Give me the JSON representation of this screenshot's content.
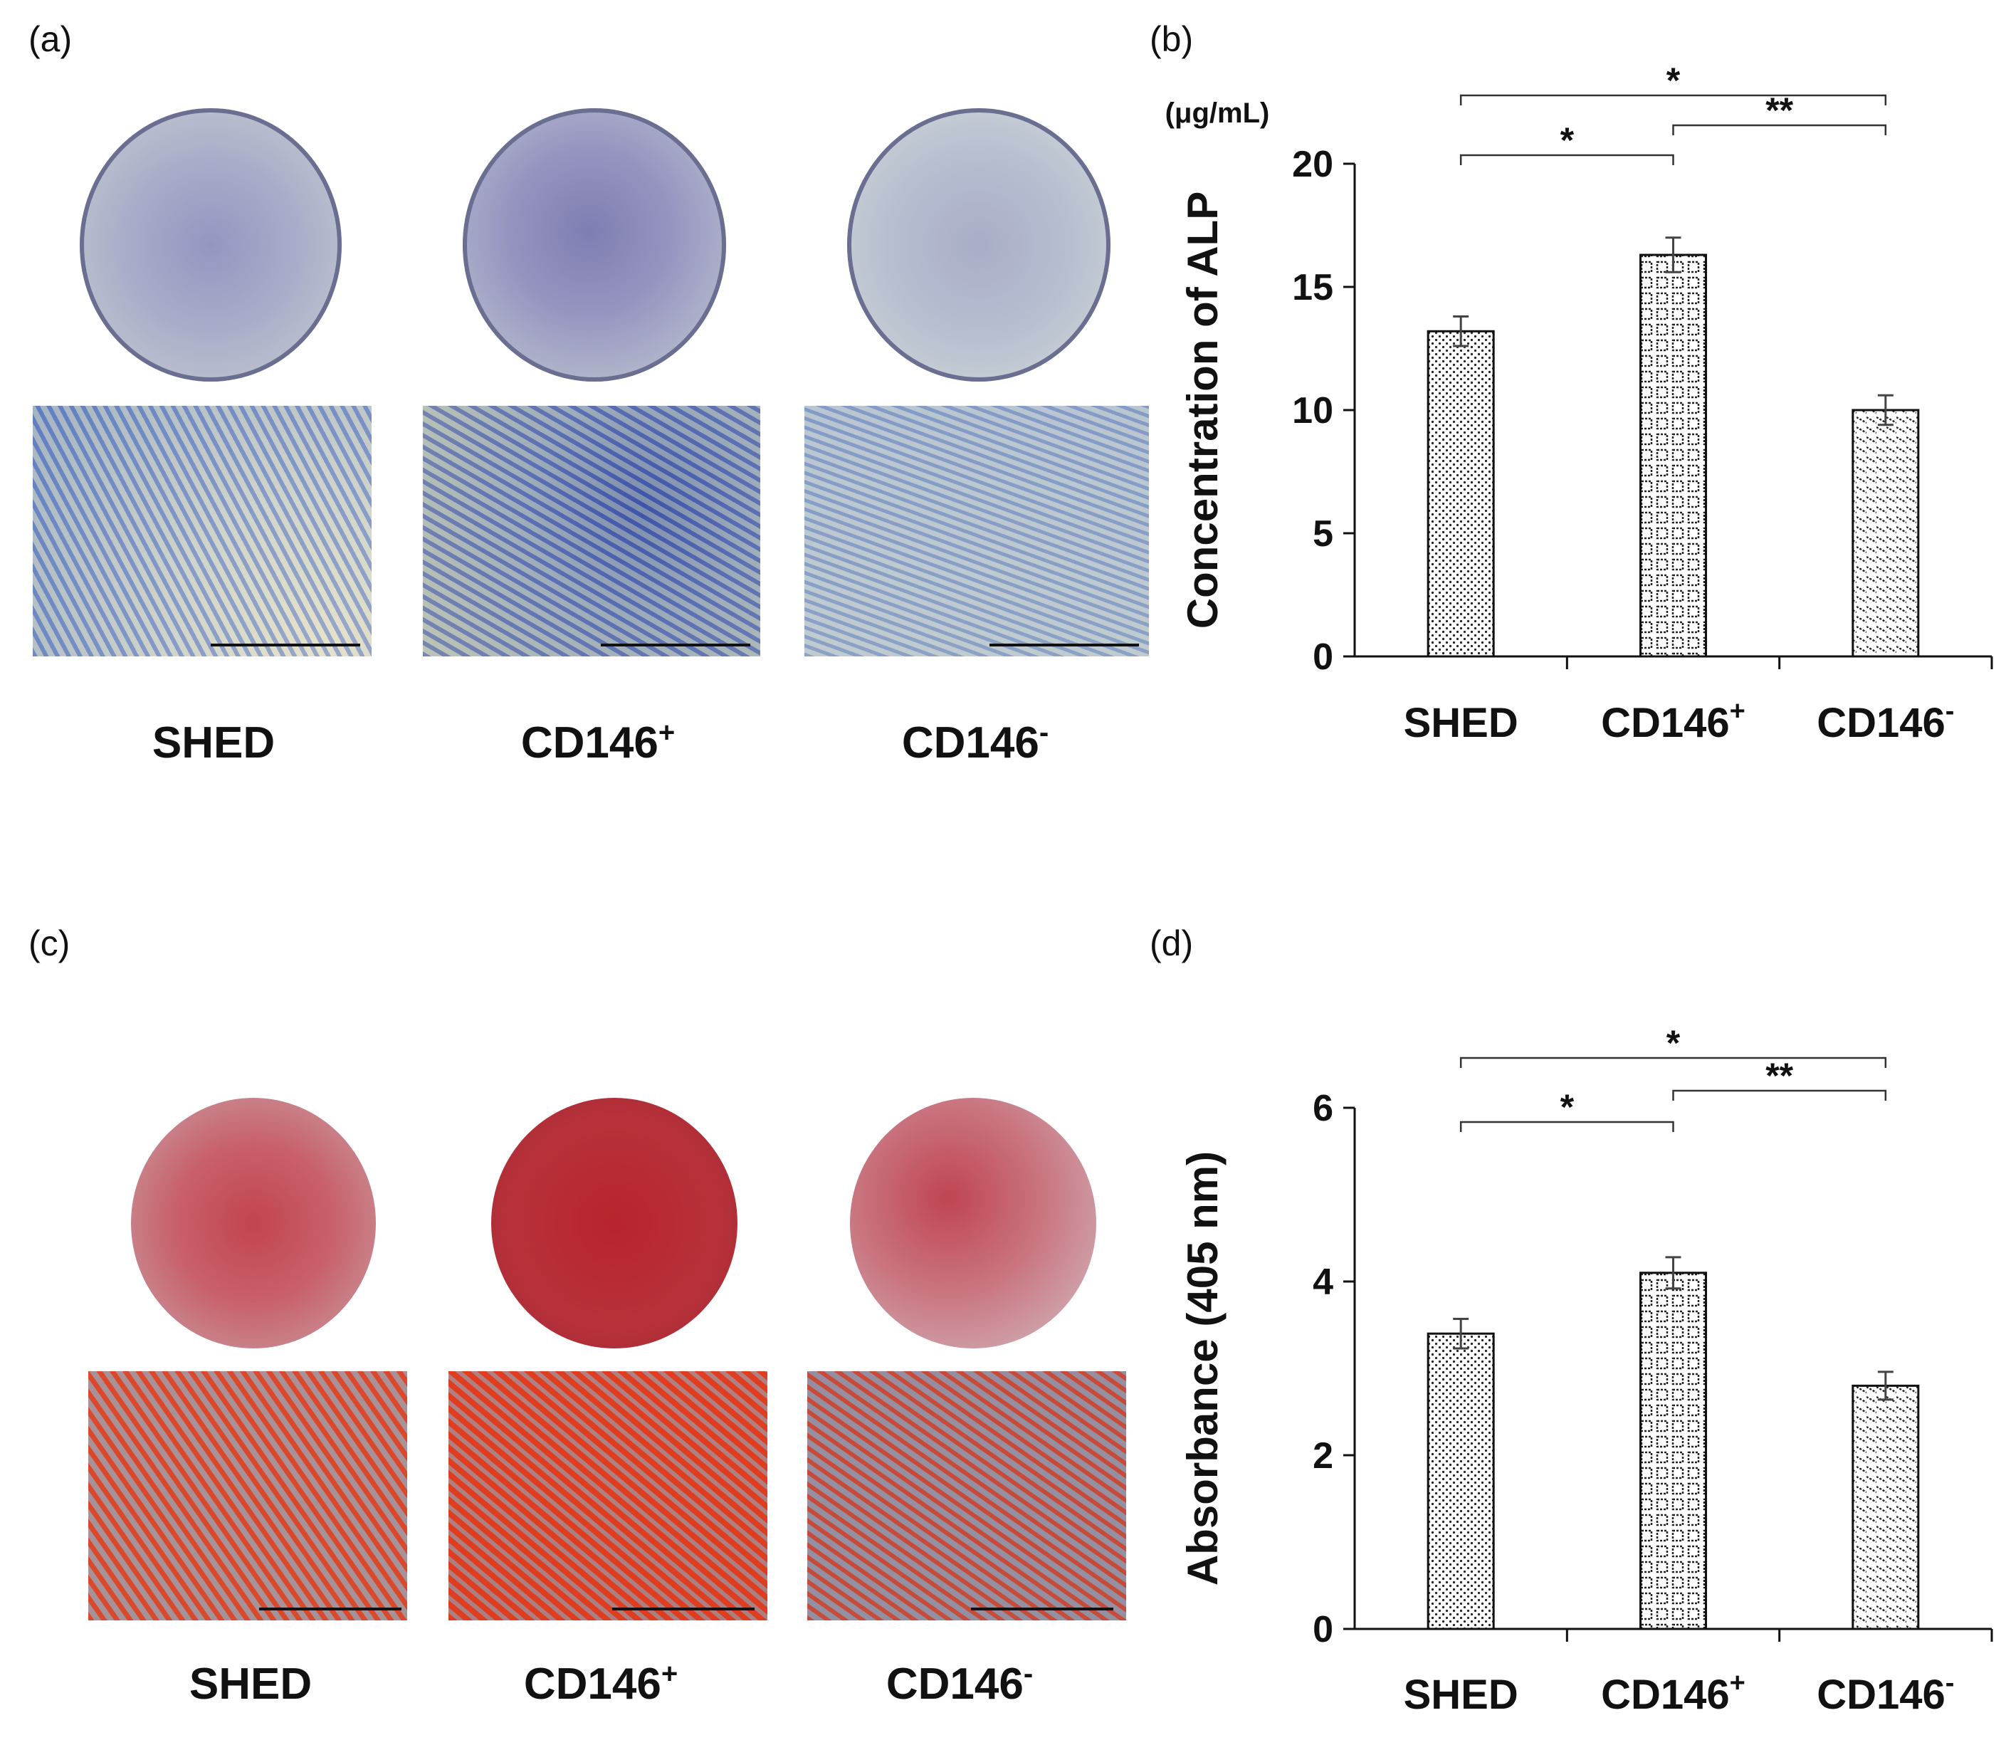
{
  "panels": {
    "a": {
      "label": "(a)",
      "groups": [
        {
          "base": "SHED",
          "sup": ""
        },
        {
          "base": "CD146",
          "sup": "+"
        },
        {
          "base": "CD146",
          "sup": "-"
        }
      ]
    },
    "b": {
      "label": "(b)"
    },
    "c": {
      "label": "(c)",
      "groups": [
        {
          "base": "SHED",
          "sup": ""
        },
        {
          "base": "CD146",
          "sup": "+"
        },
        {
          "base": "CD146",
          "sup": "-"
        }
      ]
    },
    "d": {
      "label": "(d)"
    }
  },
  "chart_data": [
    {
      "id": "b",
      "type": "bar",
      "categories": [
        {
          "base": "SHED",
          "sup": ""
        },
        {
          "base": "CD146",
          "sup": "+"
        },
        {
          "base": "CD146",
          "sup": "-"
        }
      ],
      "values": [
        13.2,
        16.3,
        10.0
      ],
      "errors": [
        0.6,
        0.7,
        0.6
      ],
      "patterns": [
        "dots",
        "grid",
        "diag"
      ],
      "ylabel": "Concentration of ALP",
      "unit": "(μg/mL)",
      "ylim": [
        0,
        20
      ],
      "yticks": [
        0,
        5,
        10,
        15,
        20
      ],
      "significance": [
        {
          "from": 0,
          "to": 2,
          "label": "*"
        },
        {
          "from": 1,
          "to": 2,
          "label": "**"
        },
        {
          "from": 0,
          "to": 1,
          "label": "*"
        }
      ]
    },
    {
      "id": "d",
      "type": "bar",
      "categories": [
        {
          "base": "SHED",
          "sup": ""
        },
        {
          "base": "CD146",
          "sup": "+"
        },
        {
          "base": "CD146",
          "sup": "-"
        }
      ],
      "values": [
        3.4,
        4.1,
        2.8
      ],
      "errors": [
        0.17,
        0.18,
        0.16
      ],
      "patterns": [
        "dots",
        "grid",
        "diag"
      ],
      "ylabel": "Absorbance (405 nm)",
      "unit": "",
      "ylim": [
        0,
        6
      ],
      "yticks": [
        0,
        2,
        4,
        6
      ],
      "significance": [
        {
          "from": 0,
          "to": 2,
          "label": "*"
        },
        {
          "from": 1,
          "to": 2,
          "label": "**"
        },
        {
          "from": 0,
          "to": 1,
          "label": "*"
        }
      ]
    }
  ]
}
